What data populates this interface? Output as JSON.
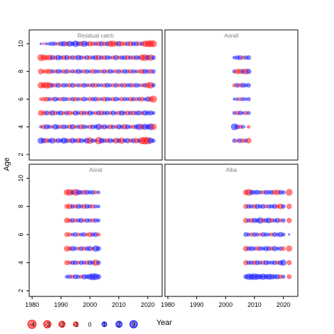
{
  "chart_data": {
    "type": "scatter",
    "subtype": "residual bubble plot (4 panels)",
    "x_label": "Year",
    "y_label": "Age",
    "x_range": [
      1979,
      2025
    ],
    "y_range": [
      1.6,
      11.0
    ],
    "x_ticks": [
      1980,
      1990,
      2000,
      2010,
      2020
    ],
    "y_ticks": [
      2,
      4,
      6,
      8,
      10
    ],
    "grid": false,
    "colors": {
      "positive": "#0000ff",
      "negative": "#ff0000",
      "panel_title": "#808080"
    },
    "legend": {
      "placement": "bottom-left",
      "values": [
        "-4",
        "-3",
        "-2",
        "-1",
        "0",
        "1",
        "2",
        "3"
      ]
    },
    "panels": [
      {
        "title": "Residual catch",
        "ages": [
          3,
          4,
          5,
          6,
          7,
          8,
          9,
          10
        ],
        "years": [
          1983,
          1984,
          1985,
          1986,
          1987,
          1988,
          1989,
          1990,
          1991,
          1992,
          1993,
          1994,
          1995,
          1996,
          1997,
          1998,
          1999,
          2000,
          2001,
          2002,
          2003,
          2004,
          2005,
          2006,
          2007,
          2008,
          2009,
          2010,
          2011,
          2012,
          2013,
          2014,
          2015,
          2016,
          2017,
          2018,
          2019,
          2020,
          2021,
          2022
        ],
        "residuals": {
          "3": [
            2.1,
            1.4,
            -1.2,
            0.9,
            1.8,
            -0.6,
            1.3,
            0.7,
            2.0,
            1.1,
            -0.9,
            1.6,
            0.8,
            -1.4,
            1.2,
            0.5,
            1.7,
            -2.3,
            1.0,
            0.4,
            -3.0,
            1.5,
            0.9,
            -1.1,
            1.3,
            0.6,
            -1.8,
            1.1,
            -2.2,
            0.7,
            1.4,
            -0.8,
            1.2,
            -1.5,
            0.9,
            -2.8,
            -3.2,
            -3.0,
            1.9,
            0.7
          ],
          "4": [
            0.4,
            -1.1,
            1.3,
            0.8,
            -0.5,
            1.6,
            0.9,
            -0.7,
            1.2,
            0.6,
            -1.0,
            1.4,
            -0.6,
            0.8,
            -1.3,
            1.0,
            0.5,
            -0.9,
            1.1,
            0.7,
            2.1,
            -0.8,
            1.3,
            0.6,
            -1.2,
            0.9,
            -0.6,
            1.4,
            0.8,
            -1.6,
            1.2,
            0.5,
            -0.9,
            1.1,
            2.2,
            -1.4,
            2.0,
            1.3,
            2.4,
            -2.1
          ],
          "5": [
            -1.6,
            -1.0,
            1.2,
            -0.7,
            1.5,
            -0.9,
            0.8,
            1.3,
            -0.6,
            1.0,
            -1.2,
            -0.5,
            1.4,
            0.7,
            -1.1,
            0.9,
            -0.8,
            1.3,
            0.6,
            -0.7,
            1.1,
            -1.3,
            0.8,
            1.0,
            -0.6,
            1.2,
            0.5,
            -0.9,
            1.4,
            0.7,
            -1.1,
            0.9,
            -1.2,
            0.8,
            1.3,
            -0.6,
            1.5,
            0.9,
            1.2,
            0.6
          ],
          "6": [
            -0.4,
            -0.9,
            -1.1,
            0.8,
            -0.6,
            1.2,
            0.5,
            -0.8,
            1.0,
            0.6,
            -0.5,
            0.9,
            -1.0,
            0.7,
            -0.6,
            1.1,
            0.4,
            -0.9,
            0.8,
            1.0,
            -0.7,
            0.5,
            -1.2,
            0.9,
            0.6,
            -0.8,
            1.1,
            0.4,
            -0.9,
            0.8,
            0.6,
            -1.0,
            0.9,
            -0.7,
            0.8,
            -1.1,
            0.5,
            1.3,
            -1.5,
            -2.8
          ],
          "7": [
            -2.2,
            -1.7,
            -2.6,
            -1.9,
            0.9,
            -0.8,
            1.2,
            -0.6,
            1.0,
            0.7,
            -0.9,
            1.1,
            -0.5,
            0.8,
            -0.7,
            1.0,
            0.6,
            -0.8,
            0.9,
            -1.0,
            0.7,
            0.5,
            -0.9,
            1.1,
            0.6,
            -0.7,
            1.0,
            -0.6,
            0.8,
            -1.1,
            0.7,
            0.9,
            -0.8,
            1.0,
            0.6,
            -0.7,
            0.9,
            -1.6,
            -2.4,
            0.8
          ],
          "8": [
            -1.6,
            -0.6,
            -1.1,
            -1.3,
            0.8,
            -0.7,
            1.1,
            0.6,
            -0.9,
            1.0,
            -0.5,
            0.8,
            -0.7,
            1.2,
            0.6,
            -0.8,
            0.9,
            0.5,
            -1.0,
            0.8,
            0.6,
            -0.7,
            0.9,
            -0.6,
            1.1,
            0.5,
            -0.8,
            0.9,
            -0.6,
            1.0,
            0.7,
            -0.9,
            0.8,
            0.6,
            -0.7,
            -1.2,
            1.1,
            0.8,
            -1.0,
            0.9
          ],
          "9": [
            -2.5,
            -2.0,
            -1.3,
            -1.7,
            1.2,
            -0.9,
            1.5,
            0.8,
            -1.2,
            1.3,
            -0.7,
            1.0,
            -0.8,
            1.4,
            0.9,
            -0.6,
            1.1,
            -0.9,
            0.7,
            1.2,
            -1.4,
            0.8,
            -1.0,
            1.1,
            0.6,
            -0.8,
            1.3,
            -0.7,
            0.9,
            1.0,
            -1.2,
            0.8,
            -0.9,
            1.1,
            0.7,
            -2.1,
            -2.4,
            1.3,
            -2.2,
            1.0
          ],
          "10": [
            0.15,
            -0.2,
            0.3,
            0.5,
            0.9,
            0.7,
            -0.6,
            1.2,
            1.5,
            -1.1,
            1.8,
            0.8,
            2.3,
            1.1,
            -1.3,
            2.0,
            0.9,
            -1.4,
            -1.0,
            0.8,
            -1.2,
            1.3,
            -0.9,
            1.1,
            -2.0,
            -2.2,
            -1.1,
            1.5,
            -1.3,
            -0.8,
            1.0,
            -1.4,
            0.9,
            1.2,
            -1.0,
            0.8,
            -2.1,
            -2.4,
            -2.8,
            -2.6
          ]
        }
      },
      {
        "title": "Aorall",
        "ages": [
          3,
          4,
          5,
          6,
          7,
          8,
          9
        ],
        "years": [
          2003,
          2004,
          2005,
          2006,
          2007,
          2008
        ],
        "residuals": {
          "3": [
            0.8,
            -0.6,
            1.1,
            -0.9,
            0.7,
            -1.6
          ],
          "4": [
            2.5,
            1.3,
            -0.8,
            0.7,
            0,
            -0.5
          ],
          "5": [
            0.6,
            -0.9,
            1.0,
            0.5,
            -0.8,
            0.7
          ],
          "6": [
            0.3,
            0.5,
            -0.6,
            0.8,
            0.4,
            0.7
          ],
          "7": [
            -0.6,
            1.0,
            -0.8,
            1.2,
            0.7,
            0.9
          ],
          "8": [
            0.7,
            -1.3,
            -1.5,
            1.1,
            -1.9,
            1.4
          ],
          "9": [
            0.5,
            0.9,
            1.1,
            -0.7,
            0.8,
            1.0
          ]
        }
      },
      {
        "title": "Aoral",
        "ages": [
          3,
          4,
          5,
          6,
          7,
          8,
          9
        ],
        "years": [
          1992,
          1993,
          1994,
          1995,
          1996,
          1997,
          1998,
          1999,
          2000,
          2001,
          2002,
          2003
        ],
        "residuals": {
          "3": [
            0.6,
            0.9,
            -0.7,
            1.1,
            0.8,
            -0.6,
            1.4,
            0.9,
            1.8,
            2.6,
            2.4,
            1.3
          ],
          "4": [
            -1.2,
            -0.8,
            0.9,
            1.1,
            -0.6,
            1.0,
            0.7,
            -0.9,
            1.2,
            0.8,
            -2.2,
            1.0
          ],
          "5": [
            -1.8,
            -0.9,
            1.3,
            0.7,
            -0.6,
            1.1,
            -0.8,
            0.9,
            1.4,
            -0.5,
            2.1,
            1.2
          ],
          "6": [
            -1.1,
            -0.8,
            0.5,
            1.0,
            -0.6,
            0.7,
            0.9,
            -0.5,
            -1.3,
            0.8,
            1.1,
            -0.7
          ],
          "7": [
            -1.6,
            -0.9,
            1.1,
            -0.7,
            0.8,
            1.2,
            -0.6,
            0.9,
            0.7,
            -0.8,
            1.0,
            0.6
          ],
          "8": [
            -1.1,
            -1.5,
            0.9,
            -0.8,
            1.2,
            0.7,
            -1.3,
            1.0,
            0.8,
            -0.9,
            0.6,
            0.5
          ],
          "9": [
            -1.9,
            -2.4,
            1.2,
            -2.6,
            1.5,
            0.9,
            -1.2,
            1.1,
            0.8,
            1.0,
            -0.7,
            0.5
          ]
        }
      },
      {
        "title": "Alba",
        "ages": [
          3,
          4,
          5,
          6,
          7,
          8,
          9
        ],
        "years": [
          2007,
          2008,
          2009,
          2010,
          2011,
          2012,
          2013,
          2014,
          2015,
          2016,
          2017,
          2018,
          2019,
          2020,
          2021,
          2022
        ],
        "residuals": {
          "3": [
            1.1,
            2.2,
            2.0,
            2.4,
            1.8,
            1.5,
            2.1,
            1.3,
            1.8,
            1.6,
            1.1,
            1.3,
            -0.9,
            0.7,
            null,
            -1.1
          ],
          "4": [
            -1.3,
            0.8,
            0.9,
            -1.0,
            1.1,
            0.7,
            -0.9,
            1.3,
            0.6,
            0.8,
            1.0,
            -0.7,
            1.2,
            2.0,
            null,
            -1.3
          ],
          "5": [
            -1.6,
            0.9,
            1.2,
            0.7,
            -0.9,
            1.1,
            0.6,
            1.3,
            1.0,
            -0.8,
            1.4,
            0.5,
            0.9,
            -1.0,
            null,
            -2.0
          ],
          "6": [
            1.1,
            0.6,
            -0.8,
            0.9,
            0.7,
            -0.6,
            1.0,
            0.8,
            0.5,
            -0.7,
            1.0,
            0.6,
            1.3,
            0.7,
            null,
            0.1
          ],
          "7": [
            -1.4,
            0.8,
            -1.1,
            1.3,
            0.9,
            2.2,
            -0.9,
            1.2,
            1.6,
            -1.0,
            0.8,
            1.3,
            -0.6,
            0.9,
            null,
            -1.4
          ],
          "8": [
            -1.2,
            1.0,
            0.8,
            -0.9,
            1.3,
            0.7,
            1.1,
            -0.6,
            0.9,
            0.8,
            1.2,
            -0.7,
            -1.6,
            0.9,
            null,
            -1.5
          ],
          "9": [
            -1.5,
            -2.6,
            1.3,
            0.9,
            1.2,
            0.7,
            -0.8,
            1.1,
            0.9,
            1.0,
            -1.2,
            -1.5,
            1.0,
            0.8,
            null,
            -2.6
          ]
        }
      }
    ]
  }
}
